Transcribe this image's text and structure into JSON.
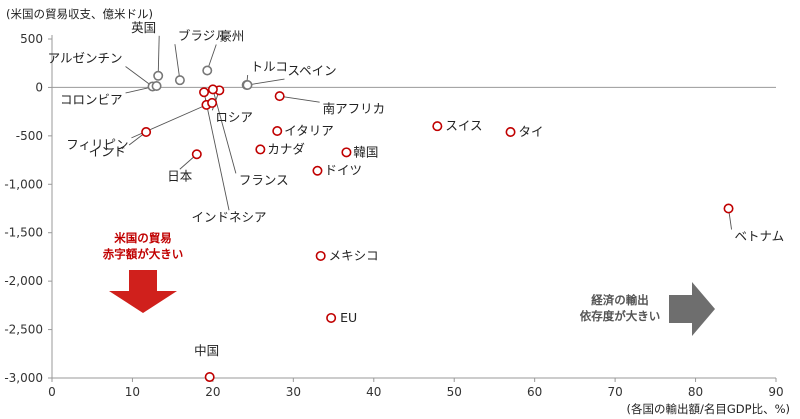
{
  "colors": {
    "deficit": "#c00000",
    "surplus": "#777777",
    "axis": "#999999",
    "leader": "#555555",
    "arrow_red": "#d0201c",
    "arrow_gray": "#6e6e6e"
  },
  "annotations": {
    "deficit_line1": "米国の貿易",
    "deficit_line2": "赤字額が大きい",
    "dependence_line1": "経済の輸出",
    "dependence_line2": "依存度が大きい"
  },
  "chart_data": {
    "type": "scatter",
    "title": "",
    "ylabel": "(米国の貿易収支、億米ドル)",
    "xlabel": "(各国の輸出額/名目GDP比、%)",
    "xlim": [
      0,
      90
    ],
    "ylim": [
      -3000,
      500
    ],
    "xticks": [
      0,
      10,
      20,
      30,
      40,
      50,
      60,
      70,
      80,
      90
    ],
    "yticks": [
      500,
      0,
      -500,
      -1000,
      -1500,
      -2000,
      -2500,
      -3000
    ],
    "ytick_labels": [
      "500",
      "0",
      "-500",
      "-1,000",
      "-1,500",
      "-2,000",
      "-2,500",
      "-3,000"
    ],
    "points": [
      {
        "label": "英国",
        "x": 13.2,
        "y": 120,
        "kind": "surplus"
      },
      {
        "label": "アルゼンチン",
        "x": 12.5,
        "y": 10,
        "kind": "surplus"
      },
      {
        "label": "コロンビア",
        "x": 13.0,
        "y": 15,
        "kind": "surplus"
      },
      {
        "label": "ブラジル",
        "x": 15.9,
        "y": 75,
        "kind": "surplus"
      },
      {
        "label": "豪州",
        "x": 19.3,
        "y": 175,
        "kind": "surplus"
      },
      {
        "label": "トルコ",
        "x": 24.2,
        "y": 25,
        "kind": "surplus"
      },
      {
        "label": "スペイン",
        "x": 24.3,
        "y": 25,
        "kind": "surplus"
      },
      {
        "label": "南アフリカ",
        "x": 28.3,
        "y": -90,
        "kind": "deficit"
      },
      {
        "label": "ロシア",
        "x": 20.8,
        "y": -30,
        "kind": "deficit"
      },
      {
        "label": "フランス",
        "x": 20.0,
        "y": -20,
        "kind": "deficit"
      },
      {
        "label": "インドネシア",
        "x": 18.9,
        "y": -50,
        "kind": "deficit"
      },
      {
        "label": "フィリピン",
        "x": 19.2,
        "y": -180,
        "kind": "deficit"
      },
      {
        "label": "",
        "x": 19.9,
        "y": -160,
        "kind": "deficit"
      },
      {
        "label": "インド",
        "x": 11.7,
        "y": -460,
        "kind": "deficit"
      },
      {
        "label": "日本",
        "x": 18.0,
        "y": -690,
        "kind": "deficit"
      },
      {
        "label": "イタリア",
        "x": 28.0,
        "y": -450,
        "kind": "deficit"
      },
      {
        "label": "カナダ",
        "x": 25.9,
        "y": -640,
        "kind": "deficit"
      },
      {
        "label": "韓国",
        "x": 36.6,
        "y": -670,
        "kind": "deficit"
      },
      {
        "label": "ドイツ",
        "x": 33.0,
        "y": -860,
        "kind": "deficit"
      },
      {
        "label": "スイス",
        "x": 47.9,
        "y": -400,
        "kind": "deficit"
      },
      {
        "label": "タイ",
        "x": 57.0,
        "y": -460,
        "kind": "deficit"
      },
      {
        "label": "ベトナム",
        "x": 84.1,
        "y": -1250,
        "kind": "deficit"
      },
      {
        "label": "メキシコ",
        "x": 33.4,
        "y": -1740,
        "kind": "deficit"
      },
      {
        "label": "EU",
        "x": 34.7,
        "y": -2380,
        "kind": "deficit"
      },
      {
        "label": "中国",
        "x": 19.6,
        "y": -2990,
        "kind": "deficit"
      }
    ]
  }
}
